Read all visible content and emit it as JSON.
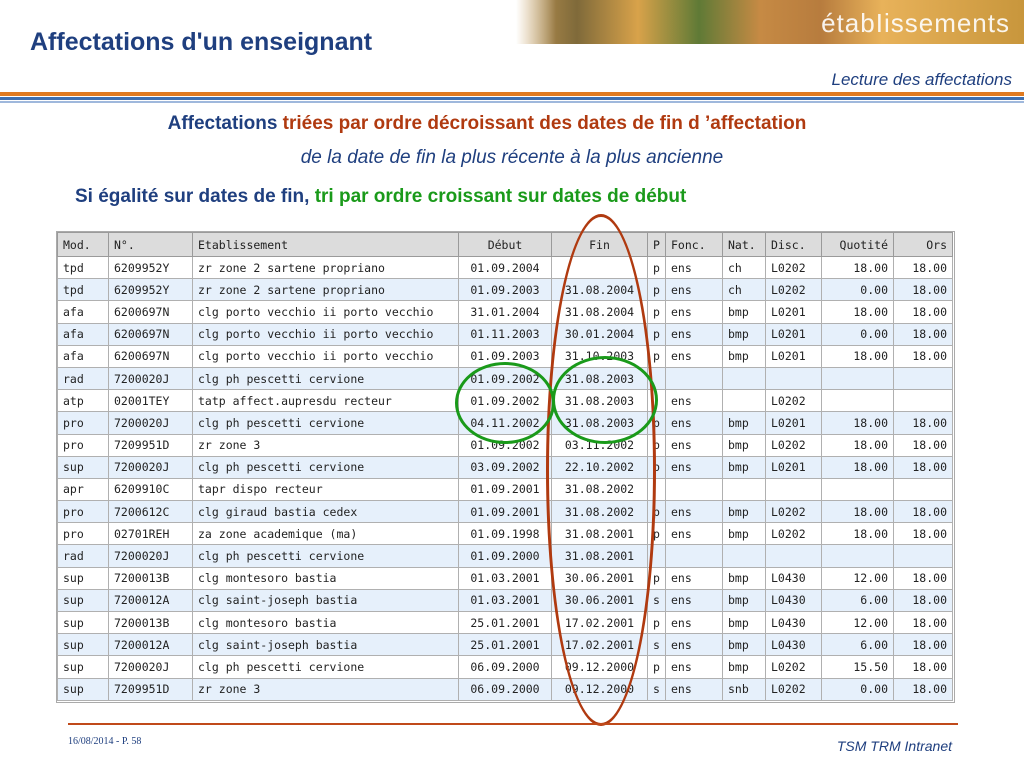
{
  "header": {
    "title": "Affectations d'un enseignant",
    "banner_text": "étabIissements",
    "subtitle": "Lecture des affectations"
  },
  "intro": {
    "line1_blue": "Affectations",
    "line1_red": "triées par ordre décroissant des dates de fin d ’affectation",
    "line2": "de la date de fin la plus récente à la plus ancienne",
    "line3_blue": "Si égalité sur dates de fin,",
    "line3_green": "tri par ordre croissant sur dates de début"
  },
  "table": {
    "columns": [
      "Mod.",
      "N°.",
      "Etablissement",
      "Début",
      "Fin",
      "P",
      "Fonc.",
      "Nat.",
      "Disc.",
      "Quotité",
      "Ors"
    ],
    "rows": [
      [
        "tpd",
        "6209952Y",
        "zr zone 2 sartene propriano",
        "01.09.2004",
        "",
        "p",
        "ens",
        "ch",
        "L0202",
        "18.00",
        "18.00"
      ],
      [
        "tpd",
        "6209952Y",
        "zr zone 2 sartene propriano",
        "01.09.2003",
        "31.08.2004",
        "p",
        "ens",
        "ch",
        "L0202",
        "0.00",
        "18.00"
      ],
      [
        "afa",
        "6200697N",
        "clg porto vecchio ii porto vecchio",
        "31.01.2004",
        "31.08.2004",
        "p",
        "ens",
        "bmp",
        "L0201",
        "18.00",
        "18.00"
      ],
      [
        "afa",
        "6200697N",
        "clg porto vecchio ii porto vecchio",
        "01.11.2003",
        "30.01.2004",
        "p",
        "ens",
        "bmp",
        "L0201",
        "0.00",
        "18.00"
      ],
      [
        "afa",
        "6200697N",
        "clg porto vecchio ii porto vecchio",
        "01.09.2003",
        "31.10.2003",
        "p",
        "ens",
        "bmp",
        "L0201",
        "18.00",
        "18.00"
      ],
      [
        "rad",
        "7200020J",
        "clg ph pescetti cervione",
        "01.09.2002",
        "31.08.2003",
        "",
        "",
        "",
        "",
        "",
        ""
      ],
      [
        "atp",
        "02001TEY",
        "tatp affect.aupresdu recteur",
        "01.09.2002",
        "31.08.2003",
        "",
        "ens",
        "",
        "L0202",
        "",
        ""
      ],
      [
        "pro",
        "7200020J",
        "clg ph pescetti cervione",
        "04.11.2002",
        "31.08.2003",
        "p",
        "ens",
        "bmp",
        "L0201",
        "18.00",
        "18.00"
      ],
      [
        "pro",
        "7209951D",
        "zr zone 3",
        "01.09.2002",
        "03.11.2002",
        "p",
        "ens",
        "bmp",
        "L0202",
        "18.00",
        "18.00"
      ],
      [
        "sup",
        "7200020J",
        "clg ph pescetti cervione",
        "03.09.2002",
        "22.10.2002",
        "p",
        "ens",
        "bmp",
        "L0201",
        "18.00",
        "18.00"
      ],
      [
        "apr",
        "6209910C",
        "tapr dispo recteur",
        "01.09.2001",
        "31.08.2002",
        "",
        "",
        "",
        "",
        "",
        ""
      ],
      [
        "pro",
        "7200612C",
        "clg giraud bastia cedex",
        "01.09.2001",
        "31.08.2002",
        "p",
        "ens",
        "bmp",
        "L0202",
        "18.00",
        "18.00"
      ],
      [
        "pro",
        "02701REH",
        "za zone academique (ma)",
        "01.09.1998",
        "31.08.2001",
        "p",
        "ens",
        "bmp",
        "L0202",
        "18.00",
        "18.00"
      ],
      [
        "rad",
        "7200020J",
        "clg ph pescetti cervione",
        "01.09.2000",
        "31.08.2001",
        "",
        "",
        "",
        "",
        "",
        ""
      ],
      [
        "sup",
        "7200013B",
        "clg montesoro bastia",
        "01.03.2001",
        "30.06.2001",
        "p",
        "ens",
        "bmp",
        "L0430",
        "12.00",
        "18.00"
      ],
      [
        "sup",
        "7200012A",
        "clg saint-joseph bastia",
        "01.03.2001",
        "30.06.2001",
        "s",
        "ens",
        "bmp",
        "L0430",
        "6.00",
        "18.00"
      ],
      [
        "sup",
        "7200013B",
        "clg montesoro bastia",
        "25.01.2001",
        "17.02.2001",
        "p",
        "ens",
        "bmp",
        "L0430",
        "12.00",
        "18.00"
      ],
      [
        "sup",
        "7200012A",
        "clg saint-joseph bastia",
        "25.01.2001",
        "17.02.2001",
        "s",
        "ens",
        "bmp",
        "L0430",
        "6.00",
        "18.00"
      ],
      [
        "sup",
        "7200020J",
        "clg ph pescetti cervione",
        "06.09.2000",
        "09.12.2000",
        "p",
        "ens",
        "bmp",
        "L0202",
        "15.50",
        "18.00"
      ],
      [
        "sup",
        "7209951D",
        "zr zone 3",
        "06.09.2000",
        "09.12.2000",
        "s",
        "ens",
        "snb",
        "L0202",
        "0.00",
        "18.00"
      ]
    ]
  },
  "annotations": {
    "red_ellipse_color": "#b03a10",
    "green_circle_color": "#1a9a1a"
  },
  "footer": {
    "date_page": "16/08/2014 - P. 58",
    "product": "TSM TRM Intranet"
  },
  "colors": {
    "title_blue": "#1f3f7f",
    "accent_red": "#b03a10",
    "accent_green": "#1a9a1a",
    "stripe_orange": "#e07a20",
    "stripe_blue": "#3f6fb0"
  }
}
